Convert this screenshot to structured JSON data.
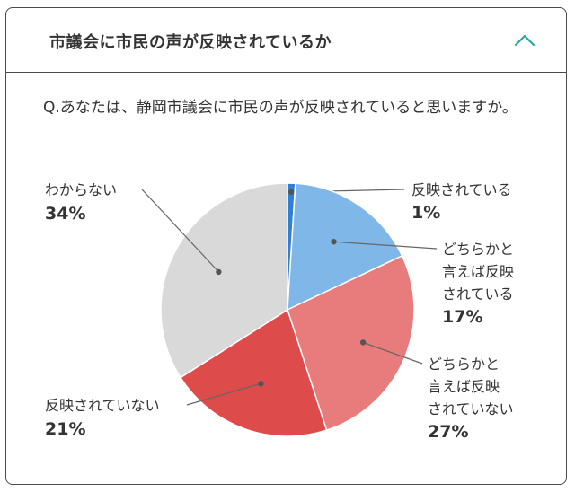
{
  "header": {
    "title": "市議会に市民の声が反映されているか"
  },
  "question": "Q.あなたは、静岡市議会に市民の声が反映されていると思いますか。",
  "chart_data": {
    "type": "pie",
    "slices": [
      {
        "label": [
          "反映されている"
        ],
        "value": 1,
        "display": "1%",
        "color": "#2f7fd6"
      },
      {
        "label": [
          "どちらかと",
          "言えば反映",
          "されている"
        ],
        "value": 17,
        "display": "17%",
        "color": "#7fb7e8"
      },
      {
        "label": [
          "どちらかと",
          "言えば反映",
          "されていない"
        ],
        "value": 27,
        "display": "27%",
        "color": "#e87c7c"
      },
      {
        "label": [
          "反映されていない"
        ],
        "value": 21,
        "display": "21%",
        "color": "#dd4b4b"
      },
      {
        "label": [
          "わからない"
        ],
        "value": 34,
        "display": "34%",
        "color": "#d9d9d9"
      }
    ]
  }
}
